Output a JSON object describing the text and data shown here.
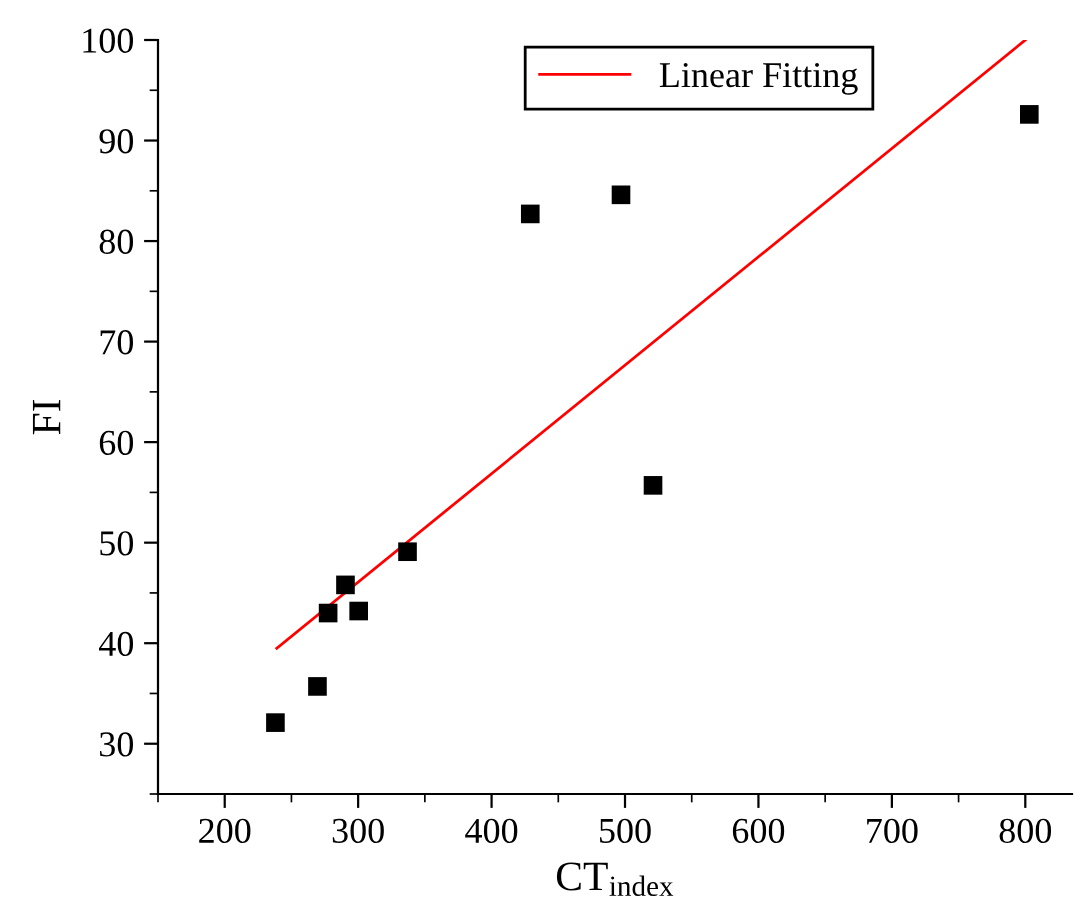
{
  "chart_data": {
    "type": "scatter",
    "xlabel": "CT$_{index}$",
    "ylabel": "FI",
    "xlim": [
      150,
      835
    ],
    "ylim": [
      25,
      100
    ],
    "xticks": [
      200,
      300,
      400,
      500,
      600,
      700,
      800
    ],
    "yticks": [
      30,
      40,
      50,
      60,
      70,
      80,
      90,
      100
    ],
    "marker": "square",
    "legend": "top right",
    "grid": false,
    "series": [
      {
        "color": "#000000",
        "x": [
          238,
          269.5,
          277.5,
          290.5,
          300.4,
          337,
          429,
          497,
          521,
          803
        ],
        "values": [
          32.1,
          35.7,
          43.0,
          45.8,
          43.2,
          49.1,
          82.7,
          84.6,
          55.7,
          92.6
        ]
      },
      {
        "type": "line",
        "name": "Linear Fitting",
        "color": "#ff0000",
        "x": [
          239,
          800
        ],
        "values": [
          39.5,
          100
        ],
        "marker": "none",
        "line_style": "solid"
      }
    ]
  }
}
